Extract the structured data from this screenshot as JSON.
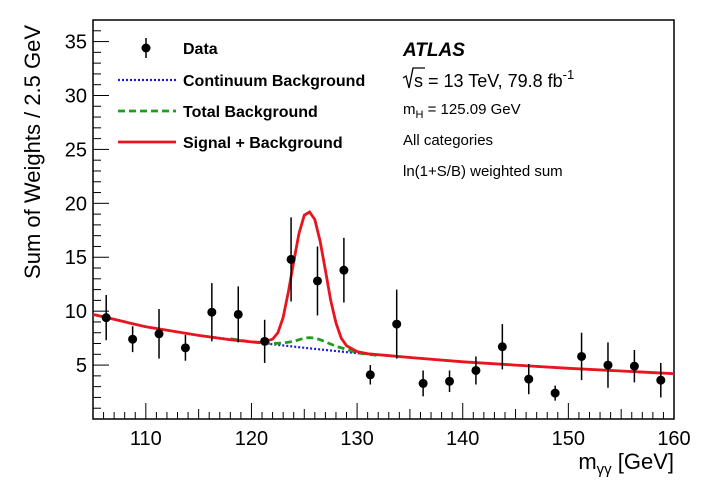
{
  "chart_data": {
    "type": "scatter",
    "xlabel_main": "m",
    "xlabel_sub": "γγ",
    "xlabel_unit": " [GeV]",
    "ylabel": "Sum of Weights /  2.5 GeV",
    "xlim": [
      105,
      160
    ],
    "ylim": [
      0,
      37
    ],
    "x_ticks": [
      110,
      120,
      130,
      140,
      150,
      160
    ],
    "x_tick_labels": [
      "110",
      "120",
      "130",
      "140",
      "150",
      "160"
    ],
    "y_ticks": [
      5,
      10,
      15,
      20,
      25,
      30,
      35
    ],
    "y_tick_labels": [
      "5",
      "10",
      "15",
      "20",
      "25",
      "30",
      "35"
    ],
    "series": [
      {
        "name": "Data",
        "kind": "points",
        "color": "#000000",
        "x": [
          106.25,
          108.75,
          111.25,
          113.75,
          116.25,
          118.75,
          121.25,
          123.75,
          126.25,
          128.75,
          131.25,
          133.75,
          136.25,
          138.75,
          141.25,
          143.75,
          146.25,
          148.75,
          151.25,
          153.75,
          156.25,
          158.75
        ],
        "y": [
          9.4,
          7.4,
          7.9,
          6.6,
          9.9,
          9.7,
          7.2,
          14.8,
          12.8,
          13.8,
          4.1,
          8.8,
          3.3,
          3.5,
          4.5,
          6.7,
          3.7,
          2.4,
          5.8,
          5.0,
          4.9,
          3.6
        ],
        "err": [
          2.1,
          1.2,
          2.3,
          1.2,
          2.7,
          2.6,
          2.0,
          3.9,
          3.2,
          3.0,
          0.9,
          3.2,
          1.2,
          1.0,
          1.3,
          2.1,
          1.4,
          0.7,
          2.2,
          2.1,
          1.5,
          1.6
        ]
      },
      {
        "name": "Continuum Background",
        "kind": "line",
        "color": "#1a1ae6",
        "dash": "dotted",
        "x": [
          105,
          110,
          115,
          120,
          125,
          130,
          135,
          140,
          145,
          150,
          155,
          160
        ],
        "y": [
          9.7,
          8.55,
          7.75,
          7.15,
          6.6,
          6.1,
          5.7,
          5.3,
          5.0,
          4.7,
          4.45,
          4.2
        ]
      },
      {
        "name": "Total Background",
        "kind": "line",
        "color": "#1e9e1e",
        "dash": "dashed",
        "x": [
          118,
          120,
          121,
          122,
          123,
          124,
          124.5,
          125,
          125.5,
          126,
          126.5,
          127,
          128,
          129,
          130,
          131,
          132
        ],
        "y": [
          7.45,
          7.15,
          7.05,
          7.0,
          7.05,
          7.2,
          7.35,
          7.5,
          7.55,
          7.5,
          7.35,
          7.15,
          6.75,
          6.45,
          6.15,
          6.0,
          5.9
        ]
      },
      {
        "name": "Signal + Background",
        "kind": "line",
        "color": "#e8141e",
        "dash": "solid",
        "x": [
          105,
          110,
          115,
          118,
          120,
          121,
          122,
          122.5,
          123,
          123.5,
          124,
          124.5,
          125,
          125.5,
          126,
          126.5,
          127,
          127.5,
          128,
          128.5,
          129,
          130,
          131,
          135,
          140,
          145,
          150,
          155,
          160
        ],
        "y": [
          9.7,
          8.55,
          7.75,
          7.35,
          7.15,
          7.1,
          7.4,
          8.0,
          9.4,
          11.8,
          14.6,
          17.2,
          18.9,
          19.2,
          18.5,
          16.5,
          13.8,
          11.0,
          8.9,
          7.5,
          6.8,
          6.25,
          6.05,
          5.7,
          5.3,
          5.0,
          4.7,
          4.45,
          4.2
        ]
      }
    ],
    "legend": {
      "placement": "top-left",
      "entries": [
        "Data",
        "Continuum Background",
        "Total Background",
        "Signal + Background"
      ]
    },
    "annotations": {
      "experiment": "ATLAS",
      "energy_root": "s",
      "energy_text": " = 13 TeV, 79.8 fb",
      "energy_sup": "-1",
      "mass_main": "m",
      "mass_sub": "H",
      "mass_text": " = 125.09 GeV",
      "categories": "All categories",
      "weighting": "ln(1+S/B) weighted sum"
    },
    "grid": false
  }
}
